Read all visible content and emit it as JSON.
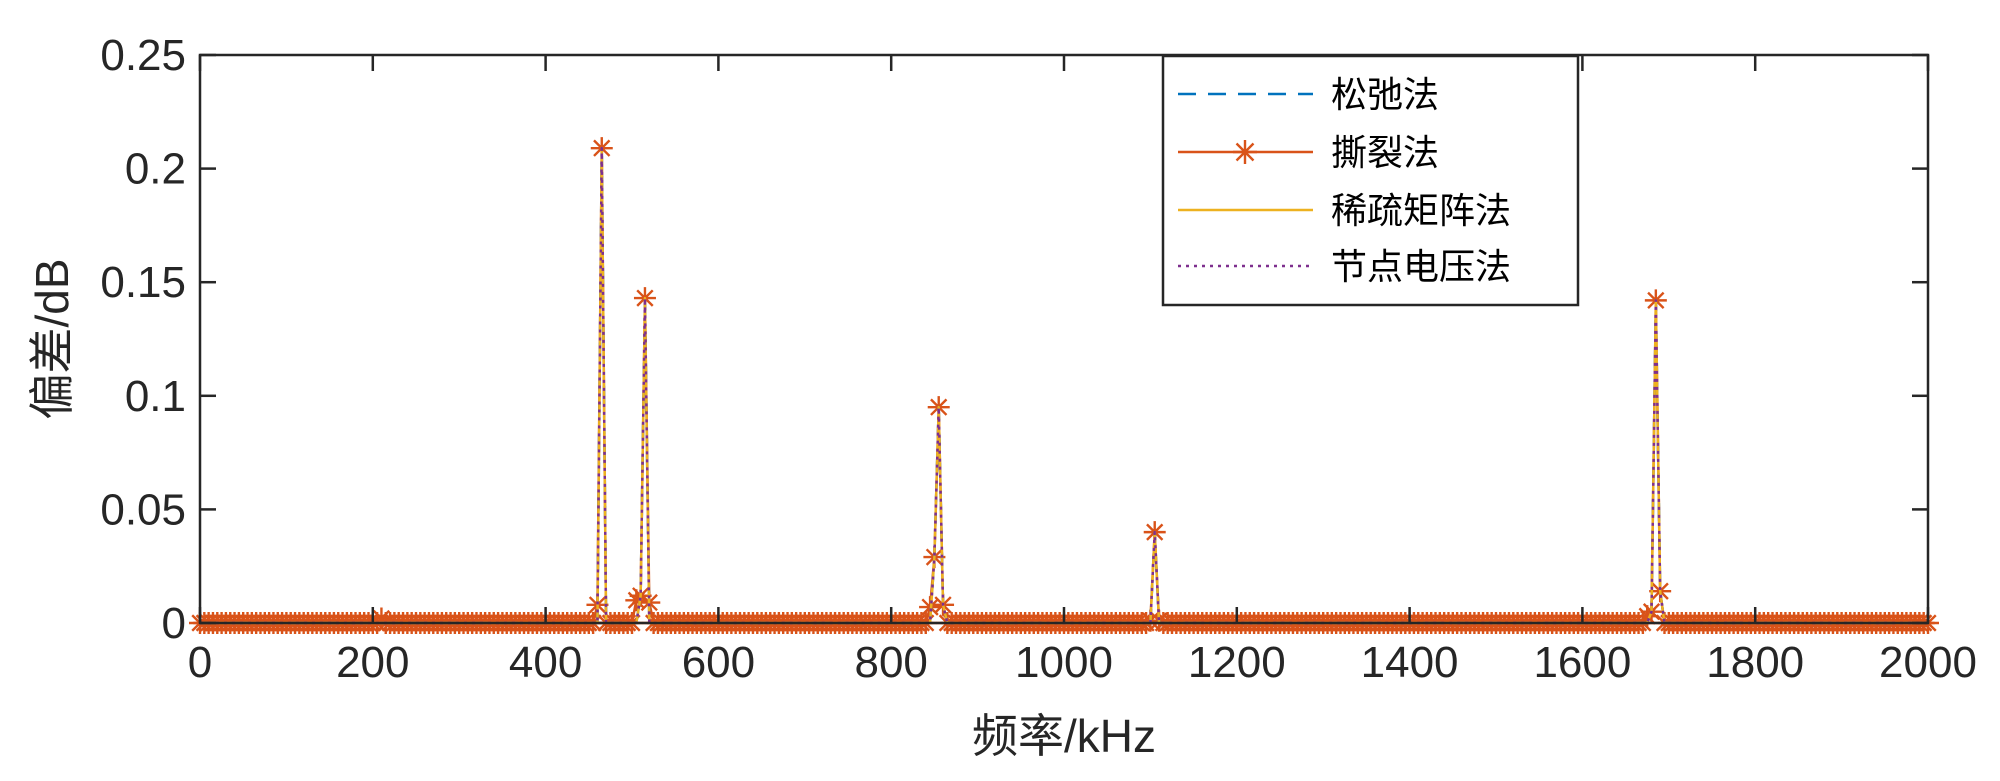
{
  "chart_data": {
    "type": "line",
    "title": "",
    "xlabel": "频率/kHz",
    "ylabel": "偏差/dB",
    "xlim": [
      0,
      2000
    ],
    "ylim": [
      0,
      0.25
    ],
    "xticks": [
      "0",
      "200",
      "400",
      "600",
      "800",
      "1000",
      "1200",
      "1400",
      "1600",
      "1800",
      "2000"
    ],
    "yticks": [
      "0",
      "0.05",
      "0.1",
      "0.15",
      "0.2",
      "0.25"
    ],
    "grid": false,
    "legend_position": "top-right",
    "marker_step_khz": 5,
    "series": [
      {
        "name": "松弛法",
        "color": "#0072BD",
        "line_style": "dashed",
        "marker": "none",
        "points": [
          [
            0,
            0
          ],
          [
            460,
            0
          ],
          [
            465,
            0.209
          ],
          [
            470,
            0
          ],
          [
            505,
            0
          ],
          [
            510,
            0.012
          ],
          [
            515,
            0.143
          ],
          [
            520,
            0
          ],
          [
            845,
            0
          ],
          [
            850,
            0.029
          ],
          [
            855,
            0.095
          ],
          [
            860,
            0.008
          ],
          [
            865,
            0
          ],
          [
            1100,
            0
          ],
          [
            1105,
            0.04
          ],
          [
            1110,
            0
          ],
          [
            1675,
            0
          ],
          [
            1680,
            0.005
          ],
          [
            1685,
            0.142
          ],
          [
            1690,
            0.014
          ],
          [
            1695,
            0
          ],
          [
            2000,
            0
          ]
        ]
      },
      {
        "name": "撕裂法",
        "color": "#D95319",
        "line_style": "solid",
        "marker": "asterisk",
        "points": [
          [
            0,
            0
          ],
          [
            205,
            0
          ],
          [
            210,
            0.002
          ],
          [
            215,
            0
          ],
          [
            455,
            0
          ],
          [
            460,
            0.008
          ],
          [
            465,
            0.209
          ],
          [
            470,
            0
          ],
          [
            500,
            0
          ],
          [
            505,
            0.01
          ],
          [
            510,
            0.012
          ],
          [
            515,
            0.143
          ],
          [
            520,
            0.009
          ],
          [
            525,
            0
          ],
          [
            840,
            0
          ],
          [
            845,
            0.007
          ],
          [
            850,
            0.029
          ],
          [
            855,
            0.095
          ],
          [
            860,
            0.008
          ],
          [
            865,
            0
          ],
          [
            1095,
            0
          ],
          [
            1100,
            0.001
          ],
          [
            1105,
            0.04
          ],
          [
            1110,
            0.001
          ],
          [
            1115,
            0
          ],
          [
            1670,
            0
          ],
          [
            1675,
            0.003
          ],
          [
            1680,
            0.005
          ],
          [
            1685,
            0.142
          ],
          [
            1690,
            0.014
          ],
          [
            1695,
            0
          ],
          [
            2000,
            0
          ]
        ]
      },
      {
        "name": "稀疏矩阵法",
        "color": "#EDB120",
        "line_style": "solid",
        "marker": "none",
        "points": [
          [
            0,
            0
          ],
          [
            460,
            0
          ],
          [
            465,
            0.209
          ],
          [
            470,
            0
          ],
          [
            505,
            0
          ],
          [
            510,
            0.012
          ],
          [
            515,
            0.143
          ],
          [
            520,
            0
          ],
          [
            845,
            0
          ],
          [
            850,
            0.029
          ],
          [
            855,
            0.095
          ],
          [
            860,
            0.008
          ],
          [
            865,
            0
          ],
          [
            1100,
            0
          ],
          [
            1105,
            0.04
          ],
          [
            1110,
            0
          ],
          [
            1675,
            0
          ],
          [
            1680,
            0.005
          ],
          [
            1685,
            0.142
          ],
          [
            1690,
            0.014
          ],
          [
            1695,
            0
          ],
          [
            2000,
            0
          ]
        ]
      },
      {
        "name": "节点电压法",
        "color": "#7E2F8E",
        "line_style": "dotted",
        "marker": "none",
        "points": [
          [
            0,
            0
          ],
          [
            460,
            0
          ],
          [
            465,
            0.209
          ],
          [
            470,
            0
          ],
          [
            505,
            0
          ],
          [
            510,
            0.012
          ],
          [
            515,
            0.143
          ],
          [
            520,
            0
          ],
          [
            845,
            0
          ],
          [
            850,
            0.029
          ],
          [
            855,
            0.095
          ],
          [
            860,
            0.008
          ],
          [
            865,
            0
          ],
          [
            1100,
            0
          ],
          [
            1105,
            0.04
          ],
          [
            1110,
            0
          ],
          [
            1675,
            0
          ],
          [
            1680,
            0.005
          ],
          [
            1685,
            0.142
          ],
          [
            1690,
            0.014
          ],
          [
            1695,
            0
          ],
          [
            2000,
            0
          ]
        ]
      }
    ]
  }
}
